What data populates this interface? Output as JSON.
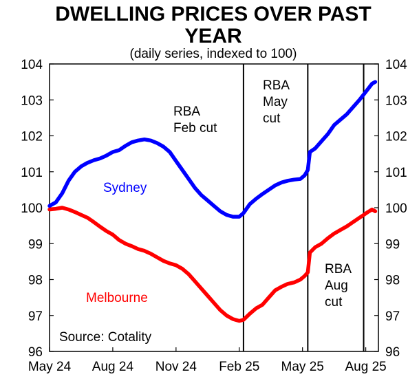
{
  "chart_data": {
    "type": "line",
    "title_line1": "DWELLING PRICES OVER PAST",
    "title_line2": "YEAR",
    "subtitle": "(daily series, indexed to 100)",
    "source": "Source: Cotality",
    "ylim": [
      96,
      104
    ],
    "yticks": [
      "96",
      "97",
      "98",
      "99",
      "100",
      "101",
      "102",
      "103",
      "104"
    ],
    "ytick_values": [
      96,
      97,
      98,
      99,
      100,
      101,
      102,
      103,
      104
    ],
    "xlim": [
      0,
      15.6
    ],
    "xticks": [
      {
        "label": "May 24",
        "value": 0
      },
      {
        "label": "Aug 24",
        "value": 3
      },
      {
        "label": "Nov 24",
        "value": 6
      },
      {
        "label": "Feb 25",
        "value": 9
      },
      {
        "label": "May 25",
        "value": 12
      },
      {
        "label": "Aug 25",
        "value": 15
      }
    ],
    "events": [
      {
        "name": "RBA Feb cut",
        "line1": "RBA",
        "line2": "Feb cut",
        "line3": "",
        "x": 9.2
      },
      {
        "name": "RBA May cut",
        "line1": "RBA",
        "line2": "May",
        "line3": "cut",
        "x": 12.25
      },
      {
        "name": "RBA Aug cut",
        "line1": "RBA",
        "line2": "Aug",
        "line3": "cut",
        "x": 14.9
      }
    ],
    "series": [
      {
        "name": "Sydney",
        "color": "#0000ff",
        "points": [
          [
            0.0,
            100.05
          ],
          [
            0.3,
            100.15
          ],
          [
            0.6,
            100.4
          ],
          [
            0.9,
            100.75
          ],
          [
            1.2,
            101.0
          ],
          [
            1.5,
            101.15
          ],
          [
            1.8,
            101.25
          ],
          [
            2.1,
            101.32
          ],
          [
            2.4,
            101.37
          ],
          [
            2.7,
            101.45
          ],
          [
            3.0,
            101.55
          ],
          [
            3.3,
            101.6
          ],
          [
            3.6,
            101.72
          ],
          [
            3.9,
            101.82
          ],
          [
            4.2,
            101.87
          ],
          [
            4.5,
            101.9
          ],
          [
            4.8,
            101.87
          ],
          [
            5.1,
            101.8
          ],
          [
            5.4,
            101.7
          ],
          [
            5.7,
            101.55
          ],
          [
            6.0,
            101.3
          ],
          [
            6.3,
            101.05
          ],
          [
            6.6,
            100.8
          ],
          [
            6.9,
            100.55
          ],
          [
            7.2,
            100.35
          ],
          [
            7.5,
            100.2
          ],
          [
            7.8,
            100.05
          ],
          [
            8.1,
            99.9
          ],
          [
            8.4,
            99.8
          ],
          [
            8.7,
            99.75
          ],
          [
            9.0,
            99.75
          ],
          [
            9.2,
            99.85
          ],
          [
            9.5,
            100.1
          ],
          [
            9.8,
            100.25
          ],
          [
            10.1,
            100.38
          ],
          [
            10.4,
            100.5
          ],
          [
            10.7,
            100.62
          ],
          [
            11.0,
            100.7
          ],
          [
            11.3,
            100.75
          ],
          [
            11.6,
            100.78
          ],
          [
            11.9,
            100.8
          ],
          [
            12.1,
            100.9
          ],
          [
            12.25,
            101.05
          ],
          [
            12.35,
            101.55
          ],
          [
            12.6,
            101.65
          ],
          [
            12.9,
            101.85
          ],
          [
            13.2,
            102.05
          ],
          [
            13.5,
            102.3
          ],
          [
            13.8,
            102.45
          ],
          [
            14.1,
            102.6
          ],
          [
            14.4,
            102.8
          ],
          [
            14.7,
            103.0
          ],
          [
            14.9,
            103.15
          ],
          [
            15.1,
            103.3
          ],
          [
            15.3,
            103.45
          ],
          [
            15.45,
            103.5
          ]
        ]
      },
      {
        "name": "Melbourne",
        "color": "#ff0000",
        "points": [
          [
            0.0,
            99.95
          ],
          [
            0.3,
            99.97
          ],
          [
            0.6,
            100.0
          ],
          [
            0.9,
            99.95
          ],
          [
            1.2,
            99.88
          ],
          [
            1.5,
            99.8
          ],
          [
            1.8,
            99.72
          ],
          [
            2.1,
            99.6
          ],
          [
            2.4,
            99.47
          ],
          [
            2.7,
            99.35
          ],
          [
            3.0,
            99.25
          ],
          [
            3.3,
            99.1
          ],
          [
            3.6,
            99.0
          ],
          [
            3.9,
            98.93
          ],
          [
            4.2,
            98.85
          ],
          [
            4.5,
            98.8
          ],
          [
            4.8,
            98.72
          ],
          [
            5.1,
            98.62
          ],
          [
            5.4,
            98.52
          ],
          [
            5.7,
            98.45
          ],
          [
            6.0,
            98.4
          ],
          [
            6.3,
            98.3
          ],
          [
            6.6,
            98.15
          ],
          [
            6.9,
            97.95
          ],
          [
            7.2,
            97.75
          ],
          [
            7.5,
            97.55
          ],
          [
            7.8,
            97.35
          ],
          [
            8.1,
            97.15
          ],
          [
            8.4,
            97.0
          ],
          [
            8.7,
            96.9
          ],
          [
            9.0,
            96.85
          ],
          [
            9.2,
            96.88
          ],
          [
            9.5,
            97.05
          ],
          [
            9.8,
            97.2
          ],
          [
            10.1,
            97.3
          ],
          [
            10.4,
            97.5
          ],
          [
            10.7,
            97.7
          ],
          [
            11.0,
            97.8
          ],
          [
            11.3,
            97.88
          ],
          [
            11.6,
            97.92
          ],
          [
            11.9,
            98.0
          ],
          [
            12.1,
            98.1
          ],
          [
            12.25,
            98.2
          ],
          [
            12.35,
            98.75
          ],
          [
            12.6,
            98.9
          ],
          [
            12.9,
            99.0
          ],
          [
            13.2,
            99.15
          ],
          [
            13.5,
            99.28
          ],
          [
            13.8,
            99.38
          ],
          [
            14.1,
            99.48
          ],
          [
            14.4,
            99.6
          ],
          [
            14.7,
            99.72
          ],
          [
            14.9,
            99.8
          ],
          [
            15.1,
            99.88
          ],
          [
            15.3,
            99.95
          ],
          [
            15.45,
            99.9
          ]
        ]
      }
    ]
  }
}
